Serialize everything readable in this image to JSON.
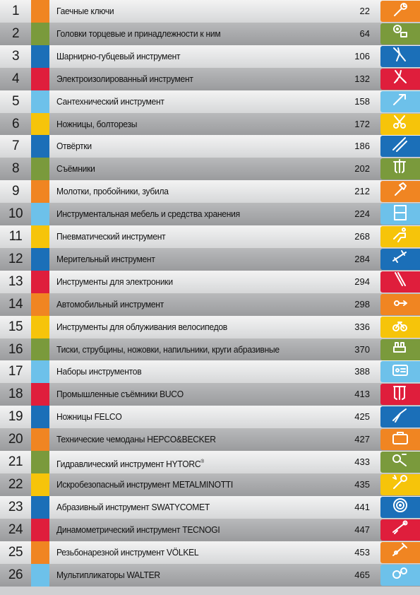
{
  "colors": {
    "orange": "#f08522",
    "green": "#7a9a3c",
    "blue": "#1b6fb8",
    "red": "#df1e3c",
    "lightblue": "#6dc1ea",
    "yellow": "#f6c40a"
  },
  "items": [
    {
      "num": "1",
      "title": "Гаечные ключи",
      "page": "22",
      "color": "#f08522",
      "icon": "wrench-icon"
    },
    {
      "num": "2",
      "title": "Головки торцевые и принадлежности к ним",
      "page": "64",
      "color": "#7a9a3c",
      "icon": "socket-icon"
    },
    {
      "num": "3",
      "title": "Шарнирно-губцевый инструмент",
      "page": "106",
      "color": "#1b6fb8",
      "icon": "pliers-icon"
    },
    {
      "num": "4",
      "title": "Электроизолированный инструмент",
      "page": "132",
      "color": "#df1e3c",
      "icon": "insulated-pliers-icon"
    },
    {
      "num": "5",
      "title": "Сантехнический инструмент",
      "page": "158",
      "color": "#6dc1ea",
      "icon": "pipe-wrench-icon"
    },
    {
      "num": "6",
      "title": "Ножницы, болторезы",
      "page": "172",
      "color": "#f6c40a",
      "icon": "scissors-icon"
    },
    {
      "num": "7",
      "title": "Отвёртки",
      "page": "186",
      "color": "#1b6fb8",
      "icon": "screwdrivers-icon"
    },
    {
      "num": "8",
      "title": "Съёмники",
      "page": "202",
      "color": "#7a9a3c",
      "icon": "puller-icon"
    },
    {
      "num": "9",
      "title": "Молотки, пробойники, зубила",
      "page": "212",
      "color": "#f08522",
      "icon": "hammer-icon"
    },
    {
      "num": "10",
      "title": "Инструментальная мебель и средства хранения",
      "page": "224",
      "color": "#6dc1ea",
      "icon": "cabinet-icon"
    },
    {
      "num": "11",
      "title": "Пневматический инструмент",
      "page": "268",
      "color": "#f6c40a",
      "icon": "air-tool-icon"
    },
    {
      "num": "12",
      "title": "Мерительный инструмент",
      "page": "284",
      "color": "#1b6fb8",
      "icon": "caliper-icon"
    },
    {
      "num": "13",
      "title": "Инструменты для электроники",
      "page": "294",
      "color": "#df1e3c",
      "icon": "tweezers-icon"
    },
    {
      "num": "14",
      "title": "Автомобильный инструмент",
      "page": "298",
      "color": "#f08522",
      "icon": "car-tool-icon"
    },
    {
      "num": "15",
      "title": "Инструменты для облуживания велосипедов",
      "page": "336",
      "color": "#f6c40a",
      "icon": "bicycle-tool-icon"
    },
    {
      "num": "16",
      "title": "Тиски, струбцины, ножовки, напильники, круги абразивные",
      "page": "370",
      "color": "#7a9a3c",
      "icon": "vise-icon"
    },
    {
      "num": "17",
      "title": "Наборы инструментов",
      "page": "388",
      "color": "#6dc1ea",
      "icon": "tool-set-icon"
    },
    {
      "num": "18",
      "title": "Промышленные съёмники BUCO",
      "page": "413",
      "color": "#df1e3c",
      "icon": "industrial-puller-icon"
    },
    {
      "num": "19",
      "title": "Ножницы FELCO",
      "page": "425",
      "color": "#1b6fb8",
      "icon": "pruning-shears-icon"
    },
    {
      "num": "20",
      "title": "Технические чемоданы HEPCO&BECKER",
      "page": "427",
      "color": "#f08522",
      "icon": "tool-case-icon"
    },
    {
      "num": "21",
      "title": "Гидравлический инструмент HYTORC",
      "sup": "®",
      "page": "433",
      "color": "#7a9a3c",
      "icon": "hydraulic-wrench-icon"
    },
    {
      "num": "22",
      "title": "Искробезопасный инструмент METALMINOTTI",
      "page": "435",
      "color": "#f6c40a",
      "icon": "spark-free-wrench-icon"
    },
    {
      "num": "23",
      "title": "Абразивный инструмент SWATYCOMET",
      "page": "441",
      "color": "#1b6fb8",
      "icon": "abrasive-disc-icon"
    },
    {
      "num": "24",
      "title": "Динамометрический инструмент TECNOGI",
      "page": "447",
      "color": "#df1e3c",
      "icon": "torque-wrench-icon"
    },
    {
      "num": "25",
      "title": "Резьбонарезной инструмент VÖLKEL",
      "page": "453",
      "color": "#f08522",
      "icon": "tap-die-icon"
    },
    {
      "num": "26",
      "title": "Мультипликаторы WALTER",
      "page": "465",
      "color": "#6dc1ea",
      "icon": "multiplier-icon"
    }
  ]
}
